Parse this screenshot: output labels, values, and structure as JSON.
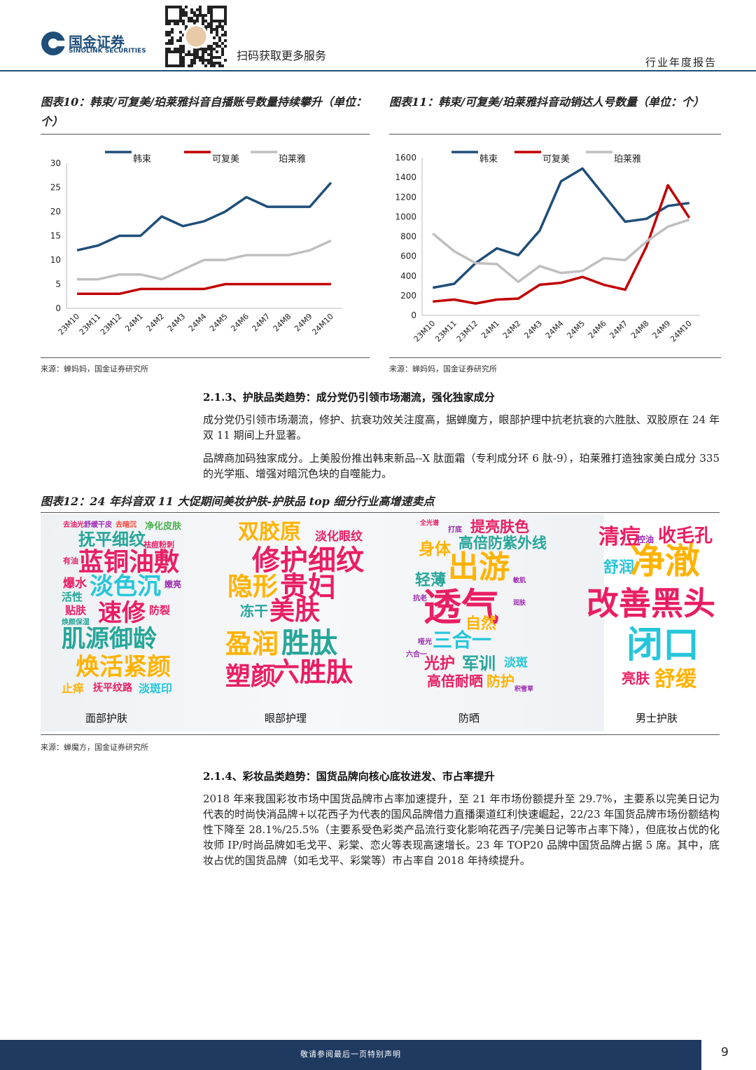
{
  "header": {
    "company": "国金证券",
    "company_en": "SINOLINK SECURITIES",
    "qr_text": "扫码获取更多服务",
    "report_type": "行业年度报告"
  },
  "figures": [
    {
      "title": "图表10：韩束/可复美/珀莱雅抖音自播账号数量持续攀升（单位：个）",
      "source": "来源：蝉妈妈，国金证券研究所"
    },
    {
      "title": "图表11：韩束/可复美/珀莱雅抖音动销达人号数量（单位：个）",
      "source": "来源：蝉妈妈，国金证券研究所"
    },
    {
      "title": "图表12：24 年抖音双 11 大促期间美妆护肤-护肤品 top 细分行业高增速卖点",
      "source": "来源：蝉魔方，国金证券研究所"
    }
  ],
  "chart_data": [
    {
      "type": "line",
      "categories": [
        "23M10",
        "23M11",
        "23M12",
        "24M1",
        "24M2",
        "24M3",
        "24M4",
        "24M5",
        "24M6",
        "24M7",
        "24M8",
        "24M9",
        "24M10"
      ],
      "series": [
        {
          "name": "韩束",
          "color": "#1f4e79",
          "values": [
            12,
            13,
            15,
            15,
            19,
            17,
            18,
            20,
            23,
            21,
            21,
            21,
            26
          ]
        },
        {
          "name": "可复美",
          "color": "#c00000",
          "values": [
            3,
            3,
            3,
            4,
            4,
            4,
            4,
            5,
            5,
            5,
            5,
            5,
            5
          ]
        },
        {
          "name": "珀莱雅",
          "color": "#bfbfbf",
          "values": [
            6,
            6,
            7,
            7,
            6,
            8,
            10,
            10,
            11,
            11,
            11,
            12,
            14
          ]
        }
      ],
      "ylim": [
        0,
        30
      ],
      "yticks": [
        0,
        5,
        10,
        15,
        20,
        25,
        30
      ],
      "grid": false
    },
    {
      "type": "line",
      "categories": [
        "23M10",
        "23M11",
        "23M12",
        "24M1",
        "24M2",
        "24M3",
        "24M4",
        "24M5",
        "24M6",
        "24M7",
        "24M8",
        "24M9",
        "24M10"
      ],
      "series": [
        {
          "name": "韩束",
          "color": "#1f4e79",
          "values": [
            280,
            320,
            530,
            680,
            610,
            860,
            1360,
            1490,
            1220,
            950,
            980,
            1110,
            1140
          ]
        },
        {
          "name": "可复美",
          "color": "#c00000",
          "values": [
            140,
            160,
            120,
            160,
            170,
            310,
            330,
            390,
            310,
            260,
            700,
            1320,
            990
          ]
        },
        {
          "name": "珀莱雅",
          "color": "#bfbfbf",
          "values": [
            830,
            650,
            530,
            520,
            340,
            500,
            430,
            450,
            580,
            560,
            750,
            900,
            970
          ]
        }
      ],
      "ylim": [
        0,
        1600
      ],
      "yticks": [
        0,
        200,
        400,
        600,
        800,
        1000,
        1200,
        1400,
        1600
      ],
      "grid": false
    }
  ],
  "sections": [
    {
      "heading": "2.1.3、护肤品类趋势：成分党仍引领市场潮流，强化独家成分",
      "paragraphs": [
        "成分党仍引领市场潮流，修护、抗衰功效关注度高，据蝉魔方，眼部护理中抗老抗衰的六胜肽、双胶原在 24 年双 11 期间上升显著。",
        "品牌商加码独家成分。上美股份推出韩束新品--X 肽面霜（专利成分环 6 肽-9），珀莱雅打造独家美白成分 335 的光学瓶、增强对暗沉色块的自噬能力。"
      ]
    },
    {
      "heading": "2.1.4、彩妆品类趋势：国货品牌向核心底妆进发、市占率提升",
      "paragraphs": [
        "2018 年来我国彩妆市场中国货品牌市占率加速提升，至 21 年市场份额提升至 29.7%，主要系以完美日记为代表的时尚快消品牌+以花西子为代表的国风品牌借力直播渠道红利快速崛起，22/23 年国货品牌市场份额结构性下降至 28.1%/25.5%（主要系受色彩类产品流行变化影响花西子/完美日记等市占率下降），但底妆占优的化妆师 IP/时尚品牌如毛戈平、彩棠、恋火等表现高速增长。23 年 TOP20 品牌中国货品牌占据 5 席。其中，底妆占优的国货品牌（如毛戈平、彩棠等）市占率自 2018 年持续提升。"
      ]
    }
  ],
  "word_cloud": {
    "panels": [
      {
        "label": "面部护肤",
        "words": [
          "去油光",
          "舒缓干皮",
          "去暗沉",
          "净化皮肤",
          "抚平细纹",
          "祛痘粉刺",
          "有油",
          "蓝铜油敷",
          "爆水",
          "淡色沉",
          "嫩亮",
          "活性",
          "贴肤",
          "速修",
          "防裂",
          "焕颜保湿",
          "肌源御龄",
          "焕活紧颜",
          "止痒",
          "抚平纹路",
          "淡斑印"
        ]
      },
      {
        "label": "眼部护理",
        "words": [
          "双胶原",
          "淡化眼纹",
          "修护细纹",
          "隐形",
          "贵妇",
          "冻干",
          "美肤",
          "盈润",
          "胜肽",
          "塑颜",
          "六胜肽"
        ]
      },
      {
        "label": "防晒",
        "words": [
          "全光谱",
          "打底",
          "提亮肤色",
          "高倍防紫外线",
          "身体",
          "出游",
          "轻薄",
          "敏肌",
          "抗老",
          "透气",
          "润肤",
          "自然",
          "哑光",
          "三合一",
          "六合一",
          "光护",
          "军训",
          "淡斑",
          "高倍耐晒",
          "防护",
          "积雪草"
        ]
      },
      {
        "label": "男士护肤",
        "words": [
          "清痘",
          "收毛孔",
          "控油",
          "舒润",
          "净澈",
          "改善黑头",
          "闭口",
          "亮肤",
          "舒缓"
        ]
      }
    ]
  },
  "footer": {
    "disclaimer": "敬请参阅最后一页特别声明",
    "page": "9"
  }
}
